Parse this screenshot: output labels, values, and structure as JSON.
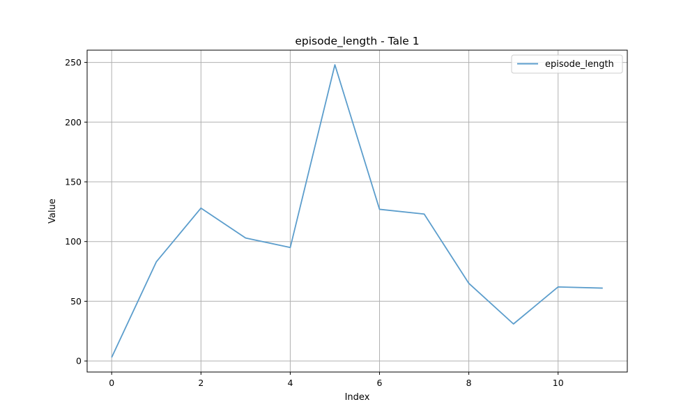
{
  "chart_data": {
    "type": "line",
    "title": "episode_length - Tale 1",
    "xlabel": "Index",
    "ylabel": "Value",
    "x": [
      0,
      1,
      2,
      3,
      4,
      5,
      6,
      7,
      8,
      9,
      10,
      11
    ],
    "series": [
      {
        "name": "episode_length",
        "color": "#5b9dcc",
        "values": [
          3,
          83,
          128,
          103,
          95,
          248,
          127,
          123,
          65,
          31,
          62,
          61
        ]
      }
    ],
    "xlim": [
      -0.55,
      11.55
    ],
    "ylim": [
      -9.25,
      260.25
    ],
    "xticks": [
      0,
      2,
      4,
      6,
      8,
      10
    ],
    "yticks": [
      0,
      50,
      100,
      150,
      200,
      250
    ],
    "grid": true,
    "legend_position": "top-right"
  }
}
